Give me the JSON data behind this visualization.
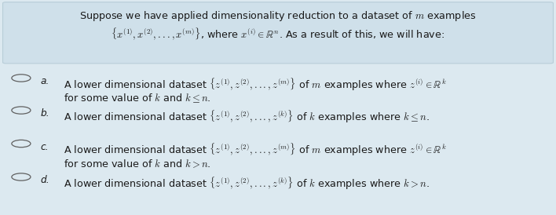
{
  "bg_color": "#dce9f0",
  "header_bg": "#cfe0ea",
  "text_color": "#1a1a1a",
  "figsize": [
    7.08,
    2.74
  ],
  "dpi": 100,
  "header_line1": "Suppose we have applied dimensionality reduction to a dataset of $m$ examples",
  "header_line2": "$\\{x^{(1)},x^{(2)},...,x^{(m)}\\}$, where $x^{(i)} \\in \\mathbb{R}^n$. As a result of this, we will have:",
  "options": [
    {
      "label": "a.",
      "line1": "A lower dimensional dataset $\\{z^{(1)},z^{(2)},...,z^{(m)}\\}$ of $m$ examples where $z^{(i)} \\in \\mathbb{R}^k$",
      "line2": "for some value of $k$ and $k \\leq n$."
    },
    {
      "label": "b.",
      "line1": "A lower dimensional dataset $\\{z^{(1)},z^{(2)},...,z^{(k)}\\}$ of $k$ examples where $k \\leq n$.",
      "line2": null
    },
    {
      "label": "c.",
      "line1": "A lower dimensional dataset $\\{z^{(1)},z^{(2)},...,z^{(m)}\\}$ of $m$ examples where $z^{(i)} \\in \\mathbb{R}^k$",
      "line2": "for some value of $k$ and $k > n$."
    },
    {
      "label": "d.",
      "line1": "A lower dimensional dataset $\\{z^{(1)},z^{(2)},...,z^{(k)}\\}$ of $k$ examples where $k > n$.",
      "line2": null
    }
  ]
}
